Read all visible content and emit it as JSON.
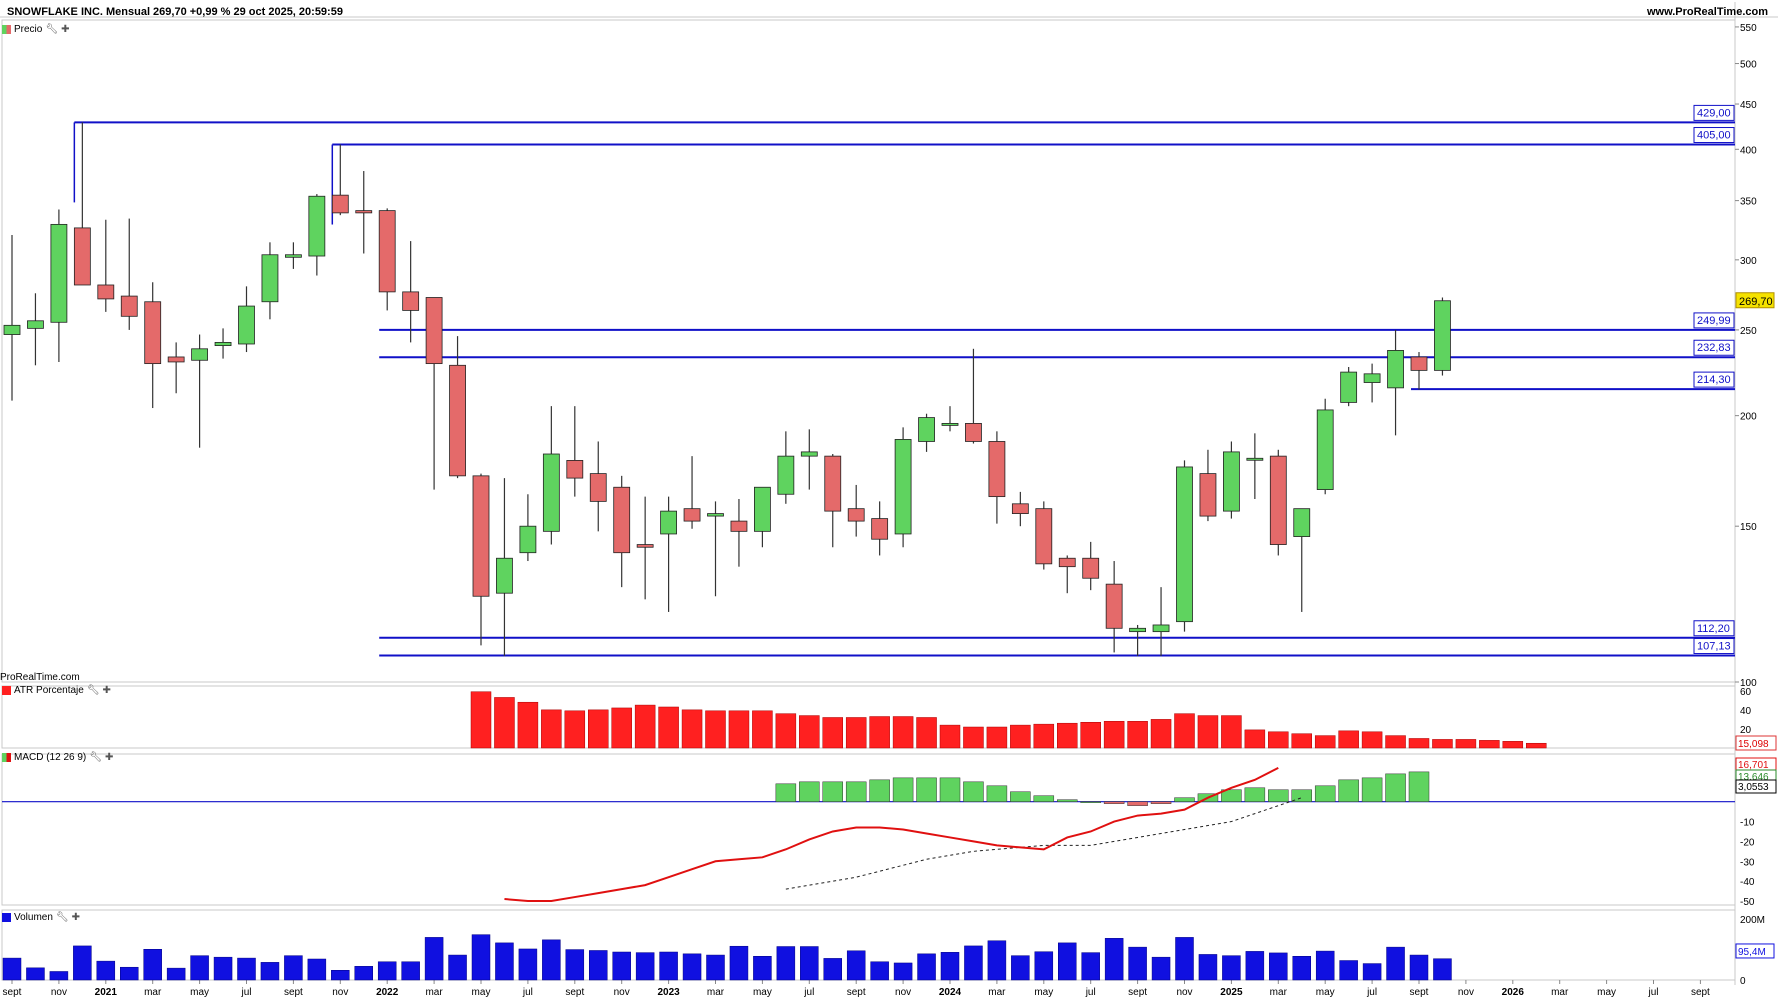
{
  "header": {
    "title": "SNOWFLAKE INC. Mensual 269,70 +0,99 % 29 oct 2025, 20:59:59",
    "site": "www.ProRealTime.com",
    "watermark": "ProRealTime.com"
  },
  "panels": {
    "price": "Precio",
    "atr": "ATR Porcentaje",
    "macd": "MACD (12 26 9)",
    "volume": "Volumen"
  },
  "icons": {
    "wrench": "wrench-icon",
    "plus": "plus-icon"
  },
  "colors": {
    "up": "#5fd35f",
    "down": "#e46a6a",
    "line": "#1010c8",
    "macd": "#e01010",
    "atr": "#ff2020",
    "vol": "#1010e0"
  },
  "chart_data": [
    {
      "type": "candlestick",
      "title": "SNOWFLAKE INC. Mensual",
      "y_scale": "log",
      "ylim": [
        100,
        560
      ],
      "y_ticks": [
        100,
        150,
        200,
        250,
        300,
        350,
        400,
        450,
        500,
        550
      ],
      "x_labels": [
        "sept",
        "nov",
        "2021",
        "mar",
        "may",
        "jul",
        "sept",
        "nov",
        "2022",
        "mar",
        "may",
        "jul",
        "sept",
        "nov",
        "2023",
        "mar",
        "may",
        "jul",
        "sept",
        "nov",
        "2024",
        "mar",
        "may",
        "jul",
        "sept",
        "nov",
        "2025",
        "mar",
        "may",
        "jul",
        "sept",
        "nov",
        "2026",
        "mar",
        "may",
        "jul",
        "sept"
      ],
      "candles": [
        {
          "date": "2020-09",
          "open": 247,
          "high": 320,
          "low": 208,
          "close": 253
        },
        {
          "date": "2020-10",
          "open": 251,
          "high": 275,
          "low": 228,
          "close": 256
        },
        {
          "date": "2020-11",
          "open": 255,
          "high": 342,
          "low": 230,
          "close": 329
        },
        {
          "date": "2020-12",
          "open": 326,
          "high": 429,
          "low": 282,
          "close": 281
        },
        {
          "date": "2021-01",
          "open": 281,
          "high": 333,
          "low": 262,
          "close": 271
        },
        {
          "date": "2021-02",
          "open": 273,
          "high": 334,
          "low": 250,
          "close": 259
        },
        {
          "date": "2021-03",
          "open": 269,
          "high": 283,
          "low": 204,
          "close": 229
        },
        {
          "date": "2021-04",
          "open": 233,
          "high": 242,
          "low": 212,
          "close": 230
        },
        {
          "date": "2021-05",
          "open": 231,
          "high": 247,
          "low": 184,
          "close": 238
        },
        {
          "date": "2021-06",
          "open": 240,
          "high": 251,
          "low": 232,
          "close": 242
        },
        {
          "date": "2021-07",
          "open": 241,
          "high": 280,
          "low": 236,
          "close": 266
        },
        {
          "date": "2021-08",
          "open": 269,
          "high": 314,
          "low": 257,
          "close": 304
        },
        {
          "date": "2021-09",
          "open": 302,
          "high": 314,
          "low": 293,
          "close": 304
        },
        {
          "date": "2021-10",
          "open": 303,
          "high": 356,
          "low": 288,
          "close": 354
        },
        {
          "date": "2021-11",
          "open": 355,
          "high": 405,
          "low": 337,
          "close": 339
        },
        {
          "date": "2021-12",
          "open": 341,
          "high": 378,
          "low": 305,
          "close": 339
        },
        {
          "date": "2022-01",
          "open": 341,
          "high": 343,
          "low": 263,
          "close": 276
        },
        {
          "date": "2022-02",
          "open": 276,
          "high": 315,
          "low": 242,
          "close": 263
        },
        {
          "date": "2022-03",
          "open": 272,
          "high": 272,
          "low": 165,
          "close": 229
        },
        {
          "date": "2022-04",
          "open": 228,
          "high": 246,
          "low": 170,
          "close": 171
        },
        {
          "date": "2022-05",
          "open": 171,
          "high": 172,
          "low": 110,
          "close": 125
        },
        {
          "date": "2022-06",
          "open": 126,
          "high": 170,
          "low": 107,
          "close": 138
        },
        {
          "date": "2022-07",
          "open": 140,
          "high": 163,
          "low": 137,
          "close": 150
        },
        {
          "date": "2022-08",
          "open": 148,
          "high": 205,
          "low": 143,
          "close": 181
        },
        {
          "date": "2022-09",
          "open": 178,
          "high": 205,
          "low": 162,
          "close": 170
        },
        {
          "date": "2022-10",
          "open": 172,
          "high": 187,
          "low": 148,
          "close": 160
        },
        {
          "date": "2022-11",
          "open": 166,
          "high": 171,
          "low": 128,
          "close": 140
        },
        {
          "date": "2022-12",
          "open": 143,
          "high": 162,
          "low": 124,
          "close": 142
        },
        {
          "date": "2023-01",
          "open": 147,
          "high": 162,
          "low": 120,
          "close": 156
        },
        {
          "date": "2023-02",
          "open": 157,
          "high": 180,
          "low": 149,
          "close": 152
        },
        {
          "date": "2023-03",
          "open": 154,
          "high": 160,
          "low": 125,
          "close": 155
        },
        {
          "date": "2023-04",
          "open": 152,
          "high": 161,
          "low": 135,
          "close": 148
        },
        {
          "date": "2023-05",
          "open": 148,
          "high": 166,
          "low": 142,
          "close": 166
        },
        {
          "date": "2023-06",
          "open": 163,
          "high": 192,
          "low": 159,
          "close": 180
        },
        {
          "date": "2023-07",
          "open": 180,
          "high": 193,
          "low": 165,
          "close": 182
        },
        {
          "date": "2023-08",
          "open": 180,
          "high": 181,
          "low": 142,
          "close": 156
        },
        {
          "date": "2023-09",
          "open": 157,
          "high": 167,
          "low": 146,
          "close": 152
        },
        {
          "date": "2023-10",
          "open": 153,
          "high": 160,
          "low": 139,
          "close": 145
        },
        {
          "date": "2023-11",
          "open": 147,
          "high": 194,
          "low": 142,
          "close": 188
        },
        {
          "date": "2023-12",
          "open": 187,
          "high": 201,
          "low": 182,
          "close": 199
        },
        {
          "date": "2024-01",
          "open": 196,
          "high": 205,
          "low": 192,
          "close": 196
        },
        {
          "date": "2024-02",
          "open": 196,
          "high": 238,
          "low": 186,
          "close": 187
        },
        {
          "date": "2024-03",
          "open": 187,
          "high": 192,
          "low": 151,
          "close": 162
        },
        {
          "date": "2024-04",
          "open": 159,
          "high": 164,
          "low": 150,
          "close": 155
        },
        {
          "date": "2024-05",
          "open": 157,
          "high": 160,
          "low": 134,
          "close": 136
        },
        {
          "date": "2024-06",
          "open": 138,
          "high": 139,
          "low": 126,
          "close": 135
        },
        {
          "date": "2024-07",
          "open": 138,
          "high": 144,
          "low": 127,
          "close": 131
        },
        {
          "date": "2024-08",
          "open": 129,
          "high": 137,
          "low": 108,
          "close": 115
        },
        {
          "date": "2024-09",
          "open": 114,
          "high": 116,
          "low": 107,
          "close": 115
        },
        {
          "date": "2024-10",
          "open": 114,
          "high": 128,
          "low": 107,
          "close": 116
        },
        {
          "date": "2024-11",
          "open": 117,
          "high": 178,
          "low": 114,
          "close": 175
        },
        {
          "date": "2024-12",
          "open": 172,
          "high": 183,
          "low": 152,
          "close": 154
        },
        {
          "date": "2025-01",
          "open": 156,
          "high": 187,
          "low": 153,
          "close": 182
        },
        {
          "date": "2025-02",
          "open": 179,
          "high": 191,
          "low": 161,
          "close": 179
        },
        {
          "date": "2025-03",
          "open": 180,
          "high": 183,
          "low": 139,
          "close": 143
        },
        {
          "date": "2025-04",
          "open": 146,
          "high": 157,
          "low": 120,
          "close": 157
        },
        {
          "date": "2025-05",
          "open": 165,
          "high": 209,
          "low": 163,
          "close": 203
        },
        {
          "date": "2025-06",
          "open": 207,
          "high": 227,
          "low": 205,
          "close": 224
        },
        {
          "date": "2025-07",
          "open": 218,
          "high": 229,
          "low": 207,
          "close": 223
        },
        {
          "date": "2025-08",
          "open": 215,
          "high": 250,
          "low": 190,
          "close": 237
        },
        {
          "date": "2025-09",
          "open": 233,
          "high": 236,
          "low": 214,
          "close": 225
        },
        {
          "date": "2025-10",
          "open": 225,
          "high": 272,
          "low": 222,
          "close": 269.7
        }
      ],
      "levels": [
        {
          "value": 429.0,
          "label": "429,00",
          "start": "2020-12"
        },
        {
          "value": 405.0,
          "label": "405,00",
          "start": "2021-11"
        },
        {
          "value": 249.99,
          "label": "249,99",
          "start": "2022-01"
        },
        {
          "value": 232.83,
          "label": "232,83",
          "start": "2022-01"
        },
        {
          "value": 214.3,
          "label": "214,30",
          "start": "2025-09"
        },
        {
          "value": 112.2,
          "label": "112,20",
          "start": "2022-01"
        },
        {
          "value": 107.13,
          "label": "107,13",
          "start": "2022-01"
        }
      ],
      "last_price_label": "269,70"
    },
    {
      "type": "bar",
      "title": "ATR Porcentaje",
      "ylim": [
        0,
        65
      ],
      "y_ticks": [
        20,
        40,
        60
      ],
      "first_date": "2022-05",
      "values": [
        59,
        53,
        48,
        40,
        39,
        40,
        42,
        45,
        43,
        40,
        39,
        39,
        39,
        36,
        34,
        32,
        32,
        33,
        33,
        32,
        24,
        22,
        22,
        24,
        25,
        26,
        27,
        28,
        28,
        30,
        36,
        34,
        34,
        19,
        17,
        15,
        13,
        18,
        17,
        13,
        10,
        9,
        9,
        8,
        7,
        5
      ],
      "last_value_label": "15,098"
    },
    {
      "type": "line+histogram",
      "title": "MACD (12 26 9)",
      "ylim": [
        -52,
        24
      ],
      "y_ticks": [
        -50,
        -40,
        -30,
        -20,
        -10
      ],
      "macd_line": {
        "first_date": "2022-06",
        "values": [
          -49,
          -50,
          -50,
          -48,
          -46,
          -44,
          -42,
          -38,
          -34,
          -30,
          -29,
          -28,
          -24,
          -19,
          -15,
          -13,
          -13,
          -14,
          -16,
          -18,
          -20,
          -22,
          -23,
          -24,
          -18,
          -15,
          -10,
          -7,
          -6,
          -4,
          2,
          7,
          11,
          17
        ]
      },
      "signal_line": {
        "first_date": "2023-06",
        "values": [
          -44,
          -42,
          -40,
          -38,
          -35,
          -32,
          -29,
          -27,
          -25,
          -24,
          -23,
          -22,
          -22,
          -22,
          -20,
          -18,
          -16,
          -14,
          -12,
          -10,
          -6,
          -2,
          2
        ]
      },
      "histogram": {
        "first_date": "2023-06",
        "values": [
          9,
          10,
          10,
          10,
          11,
          12,
          12,
          12,
          10,
          8,
          5,
          3,
          1,
          0,
          -1,
          -2,
          -1,
          2,
          4,
          6,
          7,
          6,
          6,
          8,
          11,
          12,
          14,
          15
        ]
      },
      "labels": [
        "16,701",
        "13,646",
        "3,0553"
      ]
    },
    {
      "type": "bar",
      "title": "Volumen",
      "ylim": [
        0,
        230
      ],
      "y_ticks": [
        0,
        200
      ],
      "y_tick_labels": [
        "0",
        "200M"
      ],
      "first_date": "2020-09",
      "values": [
        72,
        40,
        28,
        112,
        62,
        42,
        101,
        39,
        80,
        75,
        72,
        58,
        80,
        69,
        32,
        45,
        60,
        60,
        140,
        82,
        149,
        122,
        102,
        132,
        100,
        97,
        92,
        90,
        92,
        86,
        82,
        111,
        78,
        110,
        110,
        71,
        96,
        60,
        56,
        86,
        91,
        112,
        129,
        80,
        93,
        122,
        90,
        137,
        108,
        75,
        140,
        84,
        80,
        94,
        89,
        78,
        95,
        64,
        54,
        108,
        82,
        70
      ],
      "last_value_label": "95,4M"
    }
  ]
}
